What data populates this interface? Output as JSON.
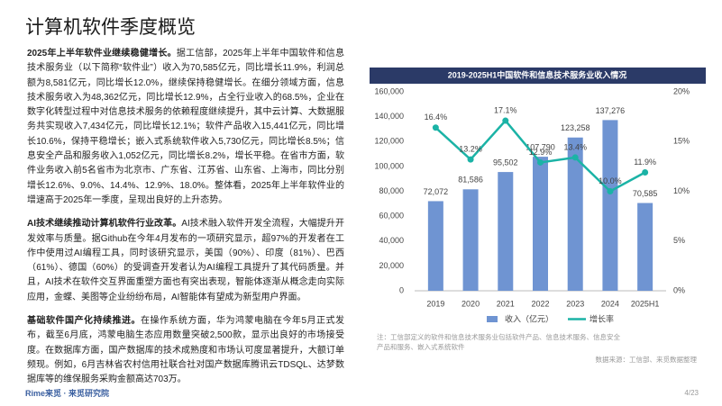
{
  "header": {
    "title": "计算机软件季度概览"
  },
  "paragraphs": [
    {
      "lead": "2025年上半年软件业继续稳健增长。",
      "text": "据工信部，2025年上半年中国软件和信息技术服务业（以下简称“软件业”）收入为70,585亿元，同比增长11.9%，利润总额为8,581亿元，同比增长12.0%，继续保持稳健增长。在细分领域方面，信息技术服务收入为48,362亿元，同比增长12.9%，占全行业收入的68.5%，企业在数字化转型过程中对信息技术服务的依赖程度继续提升，其中云计算、大数据服务共实现收入7,434亿元，同比增长12.1%；软件产品收入15,441亿元，同比增长10.6%，保持平稳增长；嵌入式系统软件收入5,730亿元，同比增长8.5%；信息安全产品和服务收入1,052亿元，同比增长8.2%，增长平稳。在省市方面，软件业务收入前5名省市为北京市、广东省、江苏省、山东省、上海市，同比分别增长12.6%、9.0%、14.4%、12.9%、18.0%。整体看，2025年上半年软件业的增速高于2025年一季度，呈现出良好的上升态势。"
    },
    {
      "lead": "AI技术继续推动计算机软件行业改革。",
      "text": "AI技术融入软件开发全流程，大幅提升开发效率与质量。据Github在今年4月发布的一项研究显示，超97%的开发者在工作中使用过AI编程工具，同时该研究显示，美国（90%）、印度（81%）、巴西（61%）、德国（60%）的受调查开发者认为AI编程工具提升了其代码质量。并且，AI技术在软件交互界面重塑方面也有突出表现，智能体逐渐从概念走向实际应用，金蝶、美图等企业纷纷布局，AI智能体有望成为新型用户界面。"
    },
    {
      "lead": "基础软件国产化持续推进。",
      "text": "在操作系统方面，华为鸿蒙电脑在今年5月正式发布，截至6月底，鸿蒙电脑生态应用数量突破2,500款，显示出良好的市场接受度。在数据库方面，国产数据库的技术成熟度和市场认可度显著提升，大额订单频现。例如，6月吉林省农村信用社联合社对国产数据库腾讯云TDSQL、达梦数据库等的维保服务采购金额高达703万。"
    }
  ],
  "chart_data": {
    "type": "bar_line",
    "title": "2019-2025H1中国软件和信息技术服务业收入情况",
    "categories": [
      "2019",
      "2020",
      "2021",
      "2022",
      "2023",
      "2024",
      "2025H1"
    ],
    "series": [
      {
        "name": "收入（亿元）",
        "type": "bar",
        "color": "#6f94d2",
        "values": [
          72072,
          81586,
          95502,
          107790,
          123258,
          137276,
          70585
        ],
        "value_labels": [
          "72,072",
          "81,586",
          "95,502",
          "107,790",
          "123,258",
          "137,276",
          "70,585"
        ]
      },
      {
        "name": "增长率",
        "type": "line",
        "axis": "y2",
        "color": "#1bb3a6",
        "values": [
          16.4,
          13.2,
          17.1,
          12.9,
          13.4,
          10.0,
          11.9
        ],
        "value_labels": [
          "16.4%",
          "13.2%",
          "17.1%",
          "12.9%",
          "13.4%",
          "10.0%",
          "11.9%"
        ]
      }
    ],
    "ylim": [
      0,
      160000
    ],
    "yticks": [
      {
        "value": 0,
        "label": "0"
      },
      {
        "value": 20000,
        "label": "20,000"
      },
      {
        "value": 40000,
        "label": "40,000"
      },
      {
        "value": 60000,
        "label": "60,000"
      },
      {
        "value": 80000,
        "label": "80,000"
      },
      {
        "value": 100000,
        "label": "100,000"
      },
      {
        "value": 120000,
        "label": "120,000"
      },
      {
        "value": 140000,
        "label": "140,000"
      },
      {
        "value": 160000,
        "label": "160,000"
      }
    ],
    "y2lim": [
      0,
      20
    ],
    "y2ticks": [
      {
        "value": 0,
        "label": "0%"
      },
      {
        "value": 5,
        "label": "5%"
      },
      {
        "value": 10,
        "label": "10%"
      },
      {
        "value": 15,
        "label": "15%"
      },
      {
        "value": 20,
        "label": "20%"
      }
    ],
    "note": "注：工信部定义的软件和信息技术服务业包括软件产品、信息技术服务、信息安全产品和服务、嵌入式系统软件",
    "source": "数据来源：工信部、来觅数据整理"
  },
  "footer": {
    "label": "Rime来觅 · 来觅研究院",
    "page": "4/23"
  }
}
